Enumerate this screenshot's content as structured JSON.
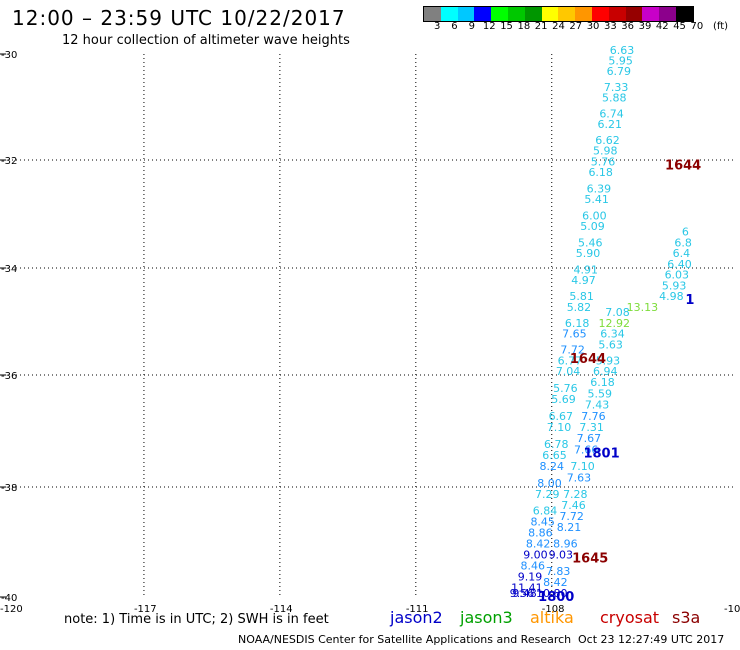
{
  "header": {
    "title": "12:00 – 23:59 UTC 10/22/2017",
    "subtitle": "12 hour collection of altimeter wave heights"
  },
  "colorbar": {
    "colors": [
      "#808080",
      "#00ffff",
      "#00c8ff",
      "#0000ff",
      "#00ff00",
      "#00c800",
      "#009600",
      "#ffff00",
      "#ffc800",
      "#ff9600",
      "#ff0000",
      "#c80000",
      "#960000",
      "#c800c8",
      "#8c008c",
      "#000000"
    ],
    "tick_labels": [
      "3",
      "6",
      "9",
      "12",
      "15",
      "18",
      "21",
      "24",
      "27",
      "30",
      "33",
      "36",
      "39",
      "42",
      "45",
      "70",
      "(ft)"
    ]
  },
  "map": {
    "lat_labels": [
      "-30",
      "-32",
      "-34",
      "-36",
      "-38",
      "-40"
    ],
    "lon_labels": [
      "-120",
      "-117",
      "-114",
      "-111",
      "-108",
      "-10"
    ],
    "track_color": "#29c7e6",
    "tracks": [
      {
        "name": "track-a",
        "points": [
          {
            "lon": -106.45,
            "lat": -30.0,
            "value": "6.63"
          },
          {
            "lon": -106.48,
            "lat": -30.2,
            "value": "5.95"
          },
          {
            "lon": -106.52,
            "lat": -30.4,
            "value": "6.79"
          },
          {
            "lon": -106.58,
            "lat": -30.7,
            "value": "7.33"
          },
          {
            "lon": -106.62,
            "lat": -30.9,
            "value": "5.88"
          },
          {
            "lon": -106.68,
            "lat": -31.2,
            "value": "6.74"
          },
          {
            "lon": -106.72,
            "lat": -31.4,
            "value": "6.21"
          },
          {
            "lon": -106.77,
            "lat": -31.7,
            "value": "6.62"
          },
          {
            "lon": -106.82,
            "lat": -31.9,
            "value": "5.98"
          },
          {
            "lon": -106.87,
            "lat": -32.1,
            "value": "5.76"
          },
          {
            "lon": -106.92,
            "lat": -32.3,
            "value": "6.18"
          },
          {
            "lon": -106.96,
            "lat": -32.6,
            "value": "6.39"
          },
          {
            "lon": -107.01,
            "lat": -32.8,
            "value": "5.41"
          },
          {
            "lon": -107.06,
            "lat": -33.1,
            "value": "6.00"
          },
          {
            "lon": -107.1,
            "lat": -33.3,
            "value": "5.09"
          },
          {
            "lon": -107.15,
            "lat": -33.6,
            "value": "5.46"
          },
          {
            "lon": -107.2,
            "lat": -33.8,
            "value": "5.90"
          },
          {
            "lon": -107.25,
            "lat": -34.1,
            "value": "4.91"
          },
          {
            "lon": -107.3,
            "lat": -34.3,
            "value": "4.97"
          },
          {
            "lon": -107.34,
            "lat": -34.6,
            "value": "5.81"
          },
          {
            "lon": -107.4,
            "lat": -34.8,
            "value": "5.82"
          },
          {
            "lon": -107.44,
            "lat": -35.1,
            "value": "6.18"
          },
          {
            "lon": -107.5,
            "lat": -35.3,
            "value": "7.65"
          },
          {
            "lon": -107.54,
            "lat": -35.6,
            "value": "7.72"
          },
          {
            "lon": -107.6,
            "lat": -35.8,
            "value": "6.77"
          },
          {
            "lon": -107.64,
            "lat": -36.0,
            "value": "7.04"
          },
          {
            "lon": -107.7,
            "lat": -36.3,
            "value": "5.76"
          },
          {
            "lon": -107.74,
            "lat": -36.5,
            "value": "5.69"
          },
          {
            "lon": -107.8,
            "lat": -36.8,
            "value": "6.67"
          },
          {
            "lon": -107.84,
            "lat": -37.0,
            "value": "7.10"
          },
          {
            "lon": -107.9,
            "lat": -37.3,
            "value": "6.78"
          },
          {
            "lon": -107.94,
            "lat": -37.5,
            "value": "6.65"
          },
          {
            "lon": -108.0,
            "lat": -37.7,
            "value": "8.24"
          },
          {
            "lon": -108.05,
            "lat": -38.0,
            "value": "8.00"
          },
          {
            "lon": -108.1,
            "lat": -38.2,
            "value": "7.29"
          },
          {
            "lon": -108.15,
            "lat": -38.5,
            "value": "6.84"
          },
          {
            "lon": -108.2,
            "lat": -38.7,
            "value": "8.45"
          },
          {
            "lon": -108.25,
            "lat": -38.9,
            "value": "8.86"
          },
          {
            "lon": -108.3,
            "lat": -39.1,
            "value": "8.42"
          },
          {
            "lon": -108.36,
            "lat": -39.3,
            "value": "9.00"
          },
          {
            "lon": -108.42,
            "lat": -39.5,
            "value": "8.46"
          },
          {
            "lon": -108.48,
            "lat": -39.7,
            "value": "9.19"
          },
          {
            "lon": -108.55,
            "lat": -39.9,
            "value": "11.41"
          },
          {
            "lon": -108.6,
            "lat": -40.1,
            "value": "9.48"
          },
          {
            "lon": -108.66,
            "lat": -40.3,
            "value": "9.56"
          }
        ]
      },
      {
        "name": "track-b",
        "points": [
          {
            "lon": -106.55,
            "lat": -34.9,
            "value": "7.08"
          },
          {
            "lon": -106.62,
            "lat": -35.1,
            "value": "12.92"
          },
          {
            "lon": -106.66,
            "lat": -35.3,
            "value": "6.34"
          },
          {
            "lon": -106.7,
            "lat": -35.5,
            "value": "5.63"
          },
          {
            "lon": -106.76,
            "lat": -35.8,
            "value": "5.93"
          },
          {
            "lon": -106.82,
            "lat": -36.0,
            "value": "6.94"
          },
          {
            "lon": -106.88,
            "lat": -36.2,
            "value": "6.18"
          },
          {
            "lon": -106.94,
            "lat": -36.4,
            "value": "5.59"
          },
          {
            "lon": -107.0,
            "lat": -36.6,
            "value": "7.43"
          },
          {
            "lon": -107.08,
            "lat": -36.8,
            "value": "7.76"
          },
          {
            "lon": -107.12,
            "lat": -37.0,
            "value": "7.31"
          },
          {
            "lon": -107.18,
            "lat": -37.2,
            "value": "7.67"
          },
          {
            "lon": -107.24,
            "lat": -37.4,
            "value": "7.66"
          },
          {
            "lon": -107.32,
            "lat": -37.7,
            "value": "7.10"
          },
          {
            "lon": -107.4,
            "lat": -37.9,
            "value": "7.63"
          },
          {
            "lon": -107.48,
            "lat": -38.2,
            "value": "7.28"
          },
          {
            "lon": -107.52,
            "lat": -38.4,
            "value": "7.46"
          },
          {
            "lon": -107.56,
            "lat": -38.6,
            "value": "7.72"
          },
          {
            "lon": -107.62,
            "lat": -38.8,
            "value": "8.21"
          },
          {
            "lon": -107.7,
            "lat": -39.1,
            "value": "8.96"
          },
          {
            "lon": -107.8,
            "lat": -39.3,
            "value": "9.03"
          },
          {
            "lon": -107.86,
            "lat": -39.6,
            "value": "7.83"
          },
          {
            "lon": -107.92,
            "lat": -39.8,
            "value": "8.42"
          },
          {
            "lon": -108.0,
            "lat": -40.0,
            "value": "10.80"
          }
        ]
      },
      {
        "name": "track-c",
        "points": [
          {
            "lon": -105.05,
            "lat": -33.4,
            "value": "6"
          },
          {
            "lon": -105.1,
            "lat": -33.6,
            "value": "6.8"
          },
          {
            "lon": -105.14,
            "lat": -33.8,
            "value": "6.4"
          },
          {
            "lon": -105.18,
            "lat": -34.0,
            "value": "6.40"
          },
          {
            "lon": -105.24,
            "lat": -34.2,
            "value": "6.03"
          },
          {
            "lon": -105.3,
            "lat": -34.4,
            "value": "5.93"
          },
          {
            "lon": -105.36,
            "lat": -34.6,
            "value": "4.98"
          },
          {
            "lon": -106.0,
            "lat": -34.8,
            "value": "13.13"
          }
        ]
      }
    ],
    "time_labels": [
      {
        "text": "1644",
        "lon": -105.5,
        "lat": -32.1,
        "color": "#8b0000",
        "name": "pass-time-label"
      },
      {
        "text": "1644",
        "lon": -107.6,
        "lat": -35.7,
        "color": "#8b0000",
        "name": "pass-time-label"
      },
      {
        "text": "1801",
        "lon": -107.3,
        "lat": -37.4,
        "color": "#0000c8",
        "name": "pass-time-label"
      },
      {
        "text": "1645",
        "lon": -107.55,
        "lat": -39.3,
        "color": "#8b0000",
        "name": "pass-time-label"
      },
      {
        "text": "1800",
        "lon": -108.3,
        "lat": -40.0,
        "color": "#0000c8",
        "name": "pass-time-label"
      },
      {
        "text": "1",
        "lon": -105.05,
        "lat": -34.6,
        "color": "#0000c8",
        "name": "pass-time-label"
      }
    ]
  },
  "footer": {
    "note": "note: 1) Time is in UTC; 2) SWH is in feet",
    "satellites": [
      {
        "name": "jason2",
        "color": "#0000c8"
      },
      {
        "name": "jason3",
        "color": "#00a000"
      },
      {
        "name": "altika",
        "color": "#ff9600"
      },
      {
        "name": "cryosat",
        "color": "#c80000"
      },
      {
        "name": "s3a",
        "color": "#8b0000"
      }
    ],
    "credit": "NOAA/NESDIS Center for Satellite Applications and Research",
    "timestamp": "Oct 23 12:27:49 UTC 2017"
  }
}
